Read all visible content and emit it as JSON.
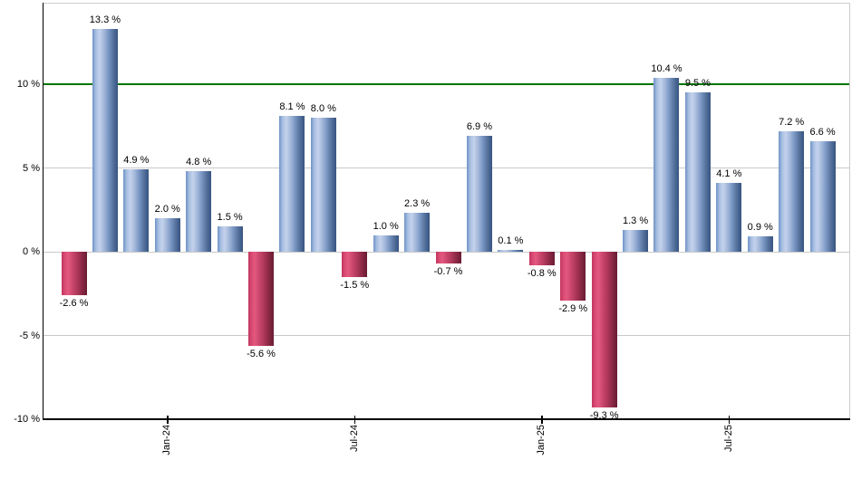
{
  "chart_data": {
    "type": "bar",
    "title": "",
    "unit": "%",
    "values": [
      -2.6,
      13.3,
      4.9,
      2.0,
      4.8,
      1.5,
      -5.6,
      8.1,
      8.0,
      -1.5,
      1.0,
      2.3,
      -0.7,
      6.9,
      0.1,
      -0.8,
      -2.9,
      -9.3,
      1.3,
      10.4,
      9.5,
      4.1,
      0.9,
      7.2,
      6.6
    ],
    "bar_labels": [
      "-2.6 %",
      "13.3 %",
      "4.9 %",
      "2.0 %",
      "4.8 %",
      "1.5 %",
      "-5.6 %",
      "8.1 %",
      "8.0 %",
      "-1.5 %",
      "1.0 %",
      "2.3 %",
      "-0.7 %",
      "6.9 %",
      "0.1 %",
      "-0.8 %",
      "-2.9 %",
      "-9.3 %",
      "1.3 %",
      "10.4 %",
      "9.5 %",
      "4.1 %",
      "0.9 %",
      "7.2 %",
      "6.6 %"
    ],
    "x_ticks": [
      {
        "label": "Jan-24",
        "bar_index": 3
      },
      {
        "label": "Jul-24",
        "bar_index": 9
      },
      {
        "label": "Jan-25",
        "bar_index": 15
      },
      {
        "label": "Jul-25",
        "bar_index": 21
      }
    ],
    "y_ticks": [
      {
        "label": "10 %",
        "value": 10
      },
      {
        "label": "5 %",
        "value": 5
      },
      {
        "label": "0 %",
        "value": 0
      },
      {
        "label": "-5 %",
        "value": -5
      },
      {
        "label": "-10 %",
        "value": -10
      }
    ],
    "ylim": [
      -10,
      14.86
    ],
    "grid": true,
    "legend": "none",
    "reference_line": {
      "value": 10,
      "color": "#007500"
    },
    "colors": {
      "positive_bar": "#7092c7",
      "positive_bar_light": "#c4d2ec",
      "positive_bar_dark": "#3a567f",
      "negative_bar": "#cc476d",
      "negative_bar_light": "#e2587e",
      "negative_bar_dark": "#6b1c34",
      "gridline": "#c9c9c9",
      "axis": "#000000",
      "label_text": "#000000",
      "background": "#ffffff"
    }
  }
}
